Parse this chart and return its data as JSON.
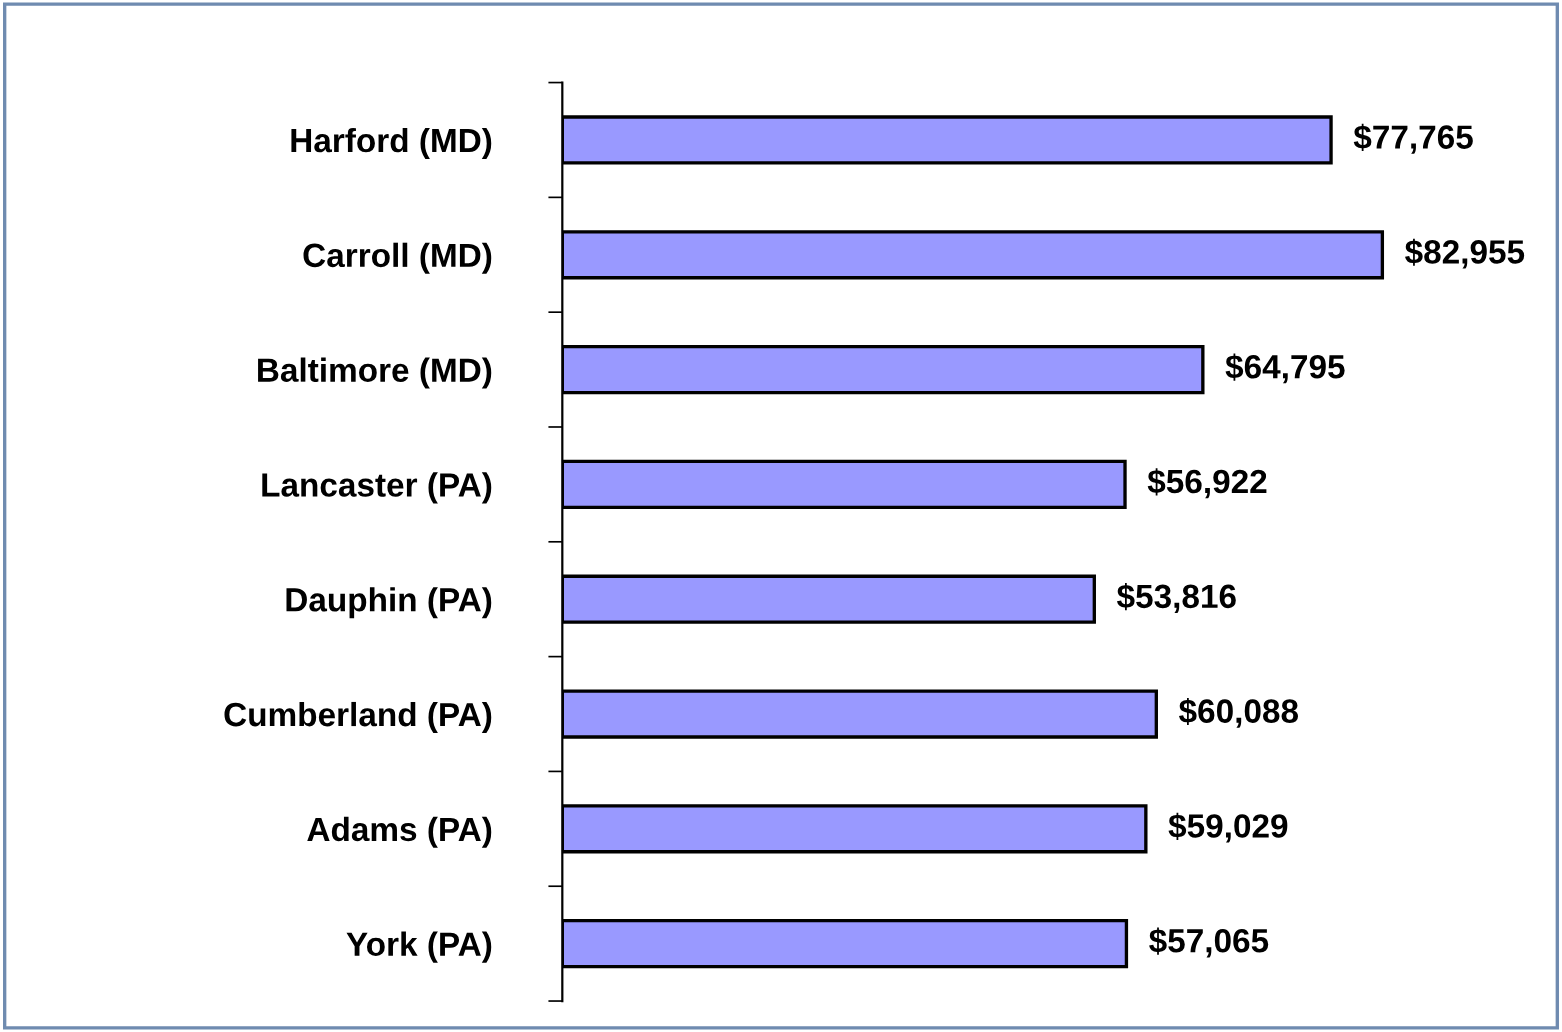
{
  "chart_data": {
    "type": "bar",
    "orientation": "horizontal",
    "categories": [
      "Harford (MD)",
      "Carroll (MD)",
      "Baltimore (MD)",
      "Lancaster (PA)",
      "Dauphin (PA)",
      "Cumberland (PA)",
      "Adams (PA)",
      "York (PA)"
    ],
    "values": [
      77765,
      82955,
      64795,
      56922,
      53816,
      60088,
      59029,
      57065
    ],
    "value_labels": [
      "$77,765",
      "$82,955",
      "$64,795",
      "$56,922",
      "$53,816",
      "$60,088",
      "$59,029",
      "$57,065"
    ],
    "color": "#9999ff",
    "grid": false,
    "legend": false
  }
}
